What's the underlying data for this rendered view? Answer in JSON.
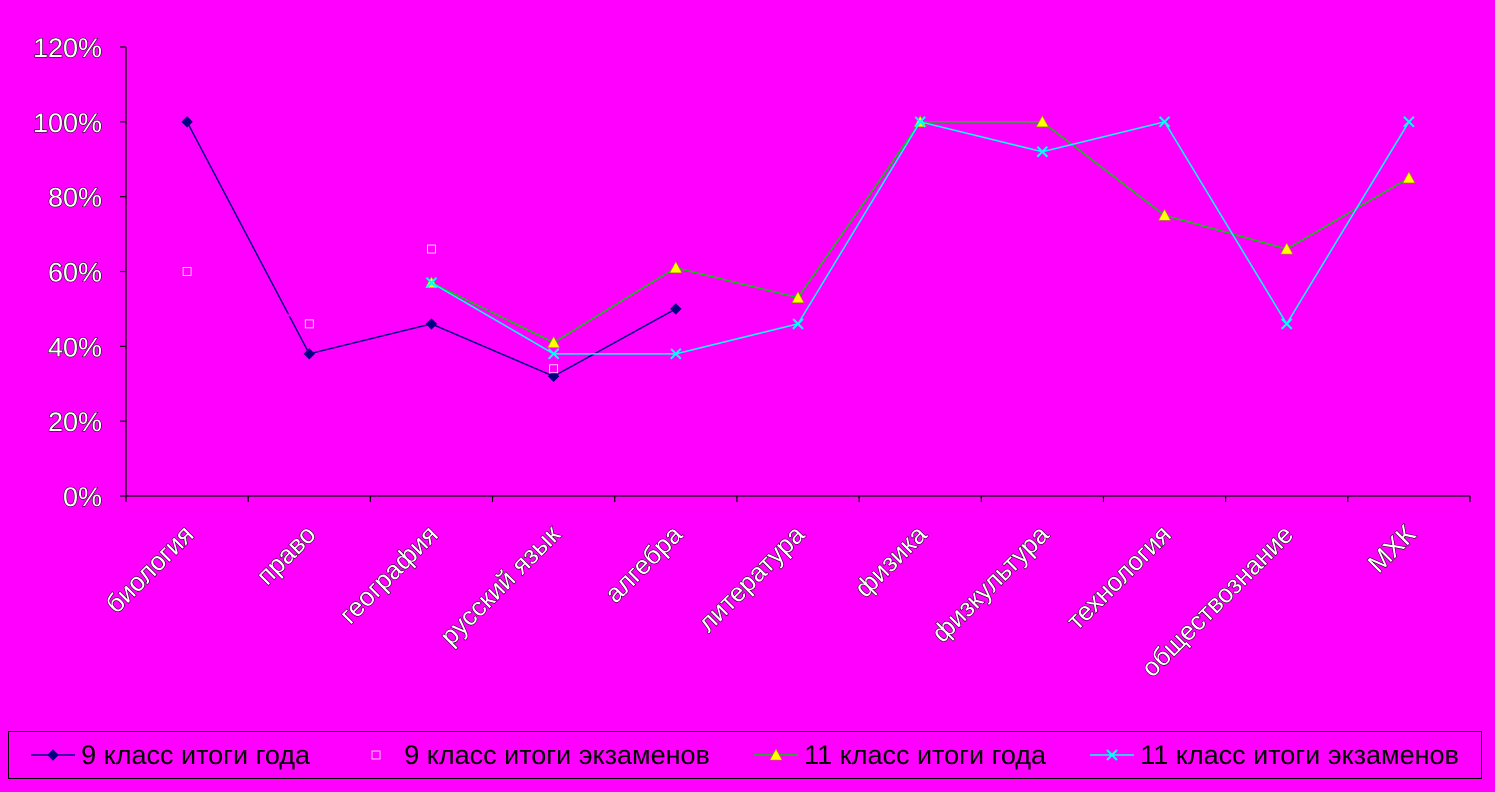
{
  "chart_data": {
    "type": "line",
    "categories": [
      "биология",
      "право",
      "география",
      "русский язык",
      "алгебра",
      "литература",
      "физика",
      "физкультура",
      "технология",
      "обществознание",
      "МХК"
    ],
    "series": [
      {
        "name": "9 класс итоги года",
        "color": "#000080",
        "marker": "diamond",
        "values": [
          100,
          38,
          46,
          32,
          50,
          null,
          null,
          null,
          null,
          null,
          null
        ]
      },
      {
        "name": "9 класс итоги экзаменов",
        "color": "#ff00ff",
        "marker": "square",
        "values": [
          60,
          46,
          66,
          34,
          null,
          null,
          null,
          null,
          null,
          null,
          null
        ]
      },
      {
        "name": "11 класс итоги года",
        "color": "#ffff00",
        "line_color": "#00cc00",
        "marker": "triangle",
        "values": [
          null,
          null,
          57,
          41,
          61,
          53,
          100,
          100,
          75,
          66,
          85
        ]
      },
      {
        "name": "11 класс итоги экзаменов",
        "color": "#00ffff",
        "marker": "x",
        "values": [
          null,
          null,
          57,
          38,
          38,
          46,
          100,
          92,
          100,
          46,
          100
        ]
      }
    ],
    "ylim": [
      0,
      120
    ],
    "yticks": [
      "0%",
      "20%",
      "40%",
      "60%",
      "80%",
      "100%",
      "120%"
    ],
    "grid": false,
    "legend_position": "bottom"
  }
}
